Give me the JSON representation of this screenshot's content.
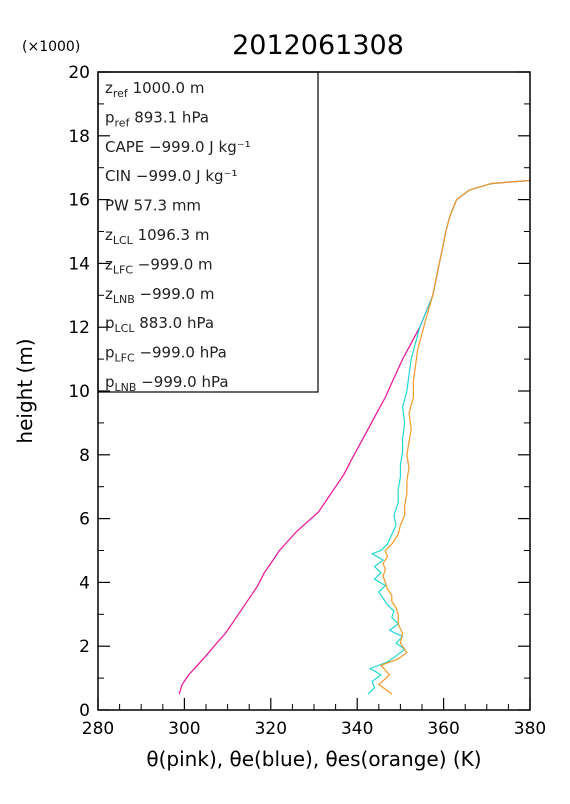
{
  "colors": {
    "theta": "#e8109a",
    "theta_e": "#20d8d0",
    "theta_es": "#f39a28",
    "frame": "#000000"
  },
  "chart_data": {
    "type": "line",
    "title": "2012061308",
    "xlabel": "θ(pink), θe(blue), θes(orange)   (K)",
    "ylabel": "height (m)",
    "y_multiplier": "(×1000)",
    "xlim": [
      280,
      380
    ],
    "ylim": [
      0,
      20
    ],
    "xticks": [
      "280",
      "300",
      "320",
      "340",
      "360",
      "380"
    ],
    "yticks": [
      "0",
      "2",
      "4",
      "6",
      "8",
      "10",
      "12",
      "14",
      "16",
      "18",
      "20"
    ],
    "info_box": [
      {
        "sym": "z",
        "sub": "ref",
        "value": "1000.0 m"
      },
      {
        "sym": "p",
        "sub": "ref",
        "value": "893.1 hPa"
      },
      {
        "sym": "CAPE",
        "sub": "",
        "value": "−999.0 J kg⁻¹"
      },
      {
        "sym": "CIN",
        "sub": "",
        "value": "−999.0 J kg⁻¹"
      },
      {
        "sym": "PW",
        "sub": "",
        "value": "57.3 mm"
      },
      {
        "sym": "z",
        "sub": "LCL",
        "value": "1096.3 m"
      },
      {
        "sym": "z",
        "sub": "LFC",
        "value": "−999.0 m"
      },
      {
        "sym": "z",
        "sub": "LNB",
        "value": "−999.0 m"
      },
      {
        "sym": "p",
        "sub": "LCL",
        "value": "883.0 hPa"
      },
      {
        "sym": "p",
        "sub": "LFC",
        "value": "−999.0 hPa"
      },
      {
        "sym": "p",
        "sub": "LNB",
        "value": "−999.0 hPa"
      }
    ],
    "series": [
      {
        "color_key": "theta",
        "points": [
          [
            298.8,
            0.5
          ],
          [
            299.5,
            0.8
          ],
          [
            301,
            1.1
          ],
          [
            303,
            1.4
          ],
          [
            305,
            1.7
          ],
          [
            307.5,
            2.1
          ],
          [
            309.5,
            2.4
          ],
          [
            311,
            2.7
          ],
          [
            313,
            3.1
          ],
          [
            315,
            3.5
          ],
          [
            317,
            3.9
          ],
          [
            318.5,
            4.3
          ],
          [
            320.5,
            4.7
          ],
          [
            322,
            5.0
          ],
          [
            324,
            5.3
          ],
          [
            326,
            5.6
          ],
          [
            328.5,
            5.9
          ],
          [
            331,
            6.2
          ],
          [
            333,
            6.6
          ],
          [
            335,
            7.0
          ],
          [
            337,
            7.4
          ],
          [
            338.5,
            7.8
          ],
          [
            340.5,
            8.3
          ],
          [
            342.5,
            8.8
          ],
          [
            344.5,
            9.3
          ],
          [
            346.5,
            9.8
          ],
          [
            348.5,
            10.4
          ],
          [
            350.5,
            11.0
          ],
          [
            352.5,
            11.5
          ],
          [
            354.5,
            12.0
          ],
          [
            356,
            12.5
          ],
          [
            357.5,
            13.0
          ],
          [
            359,
            14.0
          ],
          [
            359.8,
            14.5
          ],
          [
            360.5,
            15.0
          ],
          [
            361.5,
            15.5
          ],
          [
            363,
            16.0
          ],
          [
            366,
            16.3
          ],
          [
            371,
            16.5
          ],
          [
            375,
            16.55
          ],
          [
            380,
            16.6
          ]
        ]
      },
      {
        "color_key": "theta_e",
        "points": [
          [
            342.5,
            0.5
          ],
          [
            344,
            0.7
          ],
          [
            343.5,
            0.9
          ],
          [
            345.5,
            1.1
          ],
          [
            343,
            1.3
          ],
          [
            347,
            1.5
          ],
          [
            349,
            1.7
          ],
          [
            351,
            1.9
          ],
          [
            349,
            2.1
          ],
          [
            350.5,
            2.3
          ],
          [
            347.5,
            2.5
          ],
          [
            349.5,
            2.7
          ],
          [
            348,
            2.9
          ],
          [
            348.5,
            3.1
          ],
          [
            347,
            3.3
          ],
          [
            346,
            3.5
          ],
          [
            345,
            3.7
          ],
          [
            346.5,
            3.9
          ],
          [
            344,
            4.1
          ],
          [
            345.5,
            4.3
          ],
          [
            344,
            4.5
          ],
          [
            346,
            4.7
          ],
          [
            343.5,
            4.9
          ],
          [
            345.5,
            5.0
          ],
          [
            347,
            5.2
          ],
          [
            348,
            5.5
          ],
          [
            349,
            5.8
          ],
          [
            348.5,
            6.1
          ],
          [
            349.5,
            6.5
          ],
          [
            349.5,
            6.9
          ],
          [
            350,
            7.3
          ],
          [
            350,
            7.7
          ],
          [
            350.5,
            8.1
          ],
          [
            350.5,
            8.5
          ],
          [
            351,
            9.0
          ],
          [
            350.5,
            9.5
          ],
          [
            351.5,
            10.0
          ],
          [
            352,
            10.5
          ],
          [
            352.5,
            11.0
          ],
          [
            353.5,
            11.5
          ],
          [
            354.5,
            12.0
          ],
          [
            356,
            12.5
          ],
          [
            357.5,
            13.0
          ],
          [
            359,
            14.0
          ],
          [
            359.8,
            14.5
          ],
          [
            360.5,
            15.0
          ],
          [
            361.5,
            15.5
          ],
          [
            363,
            16.0
          ],
          [
            366,
            16.3
          ],
          [
            371,
            16.5
          ],
          [
            375,
            16.55
          ],
          [
            380,
            16.6
          ]
        ]
      },
      {
        "color_key": "theta_es",
        "points": [
          [
            348,
            0.5
          ],
          [
            345,
            0.8
          ],
          [
            347.5,
            1.1
          ],
          [
            345.5,
            1.4
          ],
          [
            349.5,
            1.6
          ],
          [
            351.5,
            1.8
          ],
          [
            350,
            2.1
          ],
          [
            350.5,
            2.4
          ],
          [
            349.5,
            2.7
          ],
          [
            349.5,
            3.0
          ],
          [
            349,
            3.2
          ],
          [
            348,
            3.4
          ],
          [
            348,
            3.6
          ],
          [
            347,
            3.8
          ],
          [
            346.5,
            4.0
          ],
          [
            346,
            4.2
          ],
          [
            346.5,
            4.4
          ],
          [
            346,
            4.6
          ],
          [
            347,
            4.8
          ],
          [
            346.5,
            5.0
          ],
          [
            348,
            5.2
          ],
          [
            349.5,
            5.5
          ],
          [
            350,
            5.8
          ],
          [
            351,
            6.1
          ],
          [
            351,
            6.4
          ],
          [
            351.5,
            6.8
          ],
          [
            351.5,
            7.2
          ],
          [
            352,
            7.6
          ],
          [
            351.5,
            8.0
          ],
          [
            352,
            8.4
          ],
          [
            352.5,
            8.8
          ],
          [
            352,
            9.3
          ],
          [
            353,
            9.8
          ],
          [
            353,
            10.3
          ],
          [
            353.5,
            10.8
          ],
          [
            354,
            11.3
          ],
          [
            355,
            11.8
          ],
          [
            356,
            12.3
          ],
          [
            357.5,
            13.0
          ],
          [
            359,
            14.0
          ],
          [
            359.8,
            14.5
          ],
          [
            360.5,
            15.0
          ],
          [
            361.5,
            15.5
          ],
          [
            363,
            16.0
          ],
          [
            366,
            16.3
          ],
          [
            371,
            16.5
          ],
          [
            375,
            16.55
          ],
          [
            380,
            16.6
          ]
        ]
      }
    ]
  }
}
